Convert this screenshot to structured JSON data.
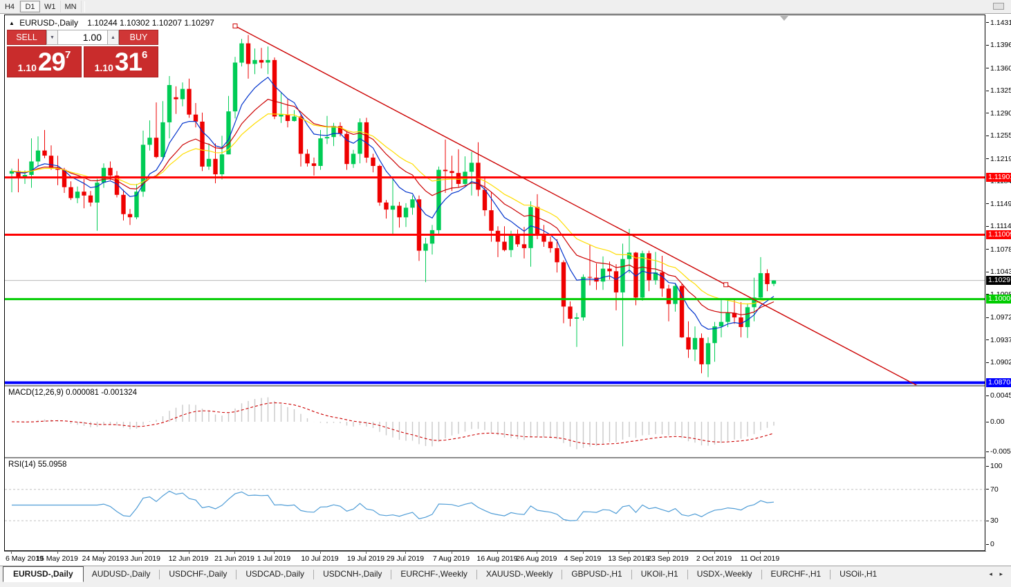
{
  "toolbar": {
    "timeframes": [
      {
        "label": "H4",
        "active": false
      },
      {
        "label": "D1",
        "active": true
      },
      {
        "label": "W1",
        "active": false
      },
      {
        "label": "MN",
        "active": false
      }
    ]
  },
  "icons": {
    "collapse": "▲",
    "spin_down": "▼",
    "spin_up": "▲",
    "tab_prev": "◂",
    "tab_next": "▸"
  },
  "chart": {
    "symbol_label": "EURUSD-,Daily",
    "ohlc_string": "1.10244 1.10302 1.10207 1.10297",
    "trade_panel": {
      "sell_label": "SELL",
      "buy_label": "BUY",
      "volume": "1.00",
      "sell_price": {
        "prefix": "1.10",
        "big": "29",
        "sup": "7"
      },
      "buy_price": {
        "prefix": "1.10",
        "big": "31",
        "sup": "6"
      }
    }
  },
  "indicators": {
    "macd_label": "MACD(12,26,9) 0.000081 -0.001324",
    "rsi_label": "RSI(14) 55.0958"
  },
  "tabs": {
    "items": [
      {
        "label": "EURUSD-,Daily",
        "active": true
      },
      {
        "label": "AUDUSD-,Daily",
        "active": false
      },
      {
        "label": "USDCHF-,Daily",
        "active": false
      },
      {
        "label": "USDCAD-,Daily",
        "active": false
      },
      {
        "label": "USDCNH-,Daily",
        "active": false
      },
      {
        "label": "EURCHF-,Weekly",
        "active": false
      },
      {
        "label": "XAUUSD-,Weekly",
        "active": false
      },
      {
        "label": "GBPUSD-,H1",
        "active": false
      },
      {
        "label": "UKOil-,H1",
        "active": false
      },
      {
        "label": "USDX-,Weekly",
        "active": false
      },
      {
        "label": "EURCHF-,H1",
        "active": false
      },
      {
        "label": "USOil-,H1",
        "active": false
      }
    ]
  },
  "chart_data": {
    "type": "candlestick",
    "symbol": "EURUSD",
    "timeframe": "Daily",
    "last_ohlc": {
      "open": 1.10244,
      "high": 1.10302,
      "low": 1.10207,
      "close": 1.10297
    },
    "current_price": 1.10297,
    "price_axis": {
      "max": 1.14428,
      "min": 1.08666,
      "ticks": [
        "1.14310",
        "1.13960",
        "1.13600",
        "1.13250",
        "1.12900",
        "1.12550",
        "1.12190",
        "1.11840",
        "1.11490",
        "1.11140",
        "1.10780",
        "1.10430",
        "1.10080",
        "1.09720",
        "1.09370",
        "1.09020"
      ]
    },
    "price_labels": [
      {
        "text": "1.11901",
        "price": 1.11901,
        "bg": "#FF0000"
      },
      {
        "text": "1.11009",
        "price": 1.11009,
        "bg": "#FF0000"
      },
      {
        "text": "1.10297",
        "price": 1.10297,
        "bg": "#000000"
      },
      {
        "text": "1.10006",
        "price": 1.10006,
        "bg": "#00CC00"
      },
      {
        "text": "1.08704",
        "price": 1.08704,
        "bg": "#0000FF"
      }
    ],
    "hlines": [
      {
        "price": 1.11901,
        "color": "#FF0000",
        "width": 3
      },
      {
        "price": 1.11009,
        "color": "#FF0000",
        "width": 3
      },
      {
        "price": 1.10006,
        "color": "#00CC00",
        "width": 3
      },
      {
        "price": 1.08704,
        "color": "#0000FF",
        "width": 4
      }
    ],
    "trendline": {
      "i1": 34,
      "p1": 1.1426,
      "i2": 108.7,
      "p2": 1.1023,
      "color": "#CC0000"
    },
    "colors": {
      "bull": "#00CC55",
      "bear": "#EE0000",
      "ma_fast": "#0033CC",
      "ma_mid": "#CC0000",
      "ma_slow": "#FFDD00",
      "macd_bar": "#C9C9C9",
      "macd_signal": "#CC0000",
      "rsi_line": "#4E9CD6",
      "price_line": "#B8B8B8",
      "level_line": "#C0C0C0"
    },
    "ma_periods": [
      8,
      16,
      24
    ],
    "macd": {
      "params": "12,26,9",
      "value": 8.1e-05,
      "signal": -0.001324,
      "axis": [
        {
          "text": "0.004536",
          "v": 0.004536
        },
        {
          "text": "0.00",
          "v": 0
        },
        {
          "text": "-0.005205",
          "v": -0.005205
        }
      ]
    },
    "rsi": {
      "period": 14,
      "value": 55.0958,
      "levels": [
        70,
        30
      ],
      "axis": [
        {
          "text": "100",
          "v": 100
        },
        {
          "text": "70",
          "v": 70
        },
        {
          "text": "30",
          "v": 30
        },
        {
          "text": "0",
          "v": 0
        }
      ]
    },
    "x_labels": [
      [
        0,
        "6 May 2019"
      ],
      [
        7,
        "15 May 2019"
      ],
      [
        14,
        "24 May 2019"
      ],
      [
        20,
        "3 Jun 2019"
      ],
      [
        27,
        "12 Jun 2019"
      ],
      [
        34,
        "21 Jun 2019"
      ],
      [
        40,
        "1 Jul 2019"
      ],
      [
        47,
        "10 Jul 2019"
      ],
      [
        54,
        "19 Jul 2019"
      ],
      [
        60,
        "29 Jul 2019"
      ],
      [
        67,
        "7 Aug 2019"
      ],
      [
        74,
        "16 Aug 2019"
      ],
      [
        80,
        "26 Aug 2019"
      ],
      [
        87,
        "4 Sep 2019"
      ],
      [
        94,
        "13 Sep 2019"
      ],
      [
        100,
        "23 Sep 2019"
      ],
      [
        107,
        "2 Oct 2019"
      ],
      [
        114,
        "11 Oct 2019"
      ]
    ],
    "candles": [
      [
        1.1196,
        1.1204,
        1.1167,
        1.12
      ],
      [
        1.12,
        1.1219,
        1.1167,
        1.1189
      ],
      [
        1.1189,
        1.1201,
        1.118,
        1.1194
      ],
      [
        1.1194,
        1.1251,
        1.1174,
        1.1215
      ],
      [
        1.1215,
        1.1254,
        1.1207,
        1.1232
      ],
      [
        1.1232,
        1.1264,
        1.122,
        1.1224
      ],
      [
        1.1224,
        1.124,
        1.1202,
        1.1205
      ],
      [
        1.1205,
        1.1224,
        1.1178,
        1.1202
      ],
      [
        1.1202,
        1.1205,
        1.1166,
        1.1175
      ],
      [
        1.1175,
        1.1184,
        1.1155,
        1.1158
      ],
      [
        1.1158,
        1.1176,
        1.115,
        1.1168
      ],
      [
        1.1168,
        1.1188,
        1.1142,
        1.1162
      ],
      [
        1.1162,
        1.1169,
        1.1145,
        1.1151
      ],
      [
        1.1151,
        1.1188,
        1.1107,
        1.1182
      ],
      [
        1.1182,
        1.1212,
        1.1174,
        1.1205
      ],
      [
        1.1205,
        1.1215,
        1.1186,
        1.1193
      ],
      [
        1.1193,
        1.12,
        1.1159,
        1.1163
      ],
      [
        1.1163,
        1.1171,
        1.1123,
        1.1133
      ],
      [
        1.1133,
        1.1141,
        1.1116,
        1.1128
      ],
      [
        1.1128,
        1.118,
        1.1125,
        1.1168
      ],
      [
        1.1168,
        1.1263,
        1.116,
        1.1241
      ],
      [
        1.1241,
        1.1279,
        1.1232,
        1.1252
      ],
      [
        1.1252,
        1.1307,
        1.122,
        1.1222
      ],
      [
        1.1222,
        1.1309,
        1.1219,
        1.1276
      ],
      [
        1.1276,
        1.1348,
        1.1251,
        1.1334
      ],
      [
        1.1315,
        1.1332,
        1.1289,
        1.1312
      ],
      [
        1.1312,
        1.1338,
        1.1301,
        1.1328
      ],
      [
        1.1328,
        1.1344,
        1.1283,
        1.1288
      ],
      [
        1.1288,
        1.1306,
        1.1268,
        1.1277
      ],
      [
        1.1277,
        1.1291,
        1.12,
        1.1207
      ],
      [
        1.1207,
        1.1243,
        1.1202,
        1.1219
      ],
      [
        1.1219,
        1.1243,
        1.1181,
        1.1195
      ],
      [
        1.1195,
        1.1255,
        1.1187,
        1.1226
      ],
      [
        1.1226,
        1.1317,
        1.1226,
        1.1293
      ],
      [
        1.1293,
        1.1378,
        1.1282,
        1.1369
      ],
      [
        1.1369,
        1.1406,
        1.1363,
        1.1399
      ],
      [
        1.1399,
        1.1412,
        1.1344,
        1.1367
      ],
      [
        1.1367,
        1.1391,
        1.1351,
        1.1373
      ],
      [
        1.1373,
        1.1392,
        1.136,
        1.1369
      ],
      [
        1.1369,
        1.1394,
        1.1351,
        1.1373
      ],
      [
        1.1373,
        1.1377,
        1.1281,
        1.1285
      ],
      [
        1.1285,
        1.1322,
        1.1275,
        1.1288
      ],
      [
        1.1288,
        1.1312,
        1.1268,
        1.1278
      ],
      [
        1.1278,
        1.1295,
        1.1277,
        1.1285
      ],
      [
        1.1285,
        1.1289,
        1.1207,
        1.1227
      ],
      [
        1.1227,
        1.1234,
        1.1207,
        1.1212
      ],
      [
        1.1212,
        1.1221,
        1.1193,
        1.1208
      ],
      [
        1.1208,
        1.1264,
        1.1202,
        1.1251
      ],
      [
        1.1251,
        1.1286,
        1.1242,
        1.1253
      ],
      [
        1.1253,
        1.1275,
        1.1239,
        1.127
      ],
      [
        1.127,
        1.1276,
        1.1254,
        1.1258
      ],
      [
        1.1258,
        1.1262,
        1.1202,
        1.1211
      ],
      [
        1.1211,
        1.1233,
        1.1205,
        1.1227
      ],
      [
        1.1227,
        1.1282,
        1.1212,
        1.1276
      ],
      [
        1.1276,
        1.1283,
        1.1213,
        1.1221
      ],
      [
        1.1221,
        1.1227,
        1.1198,
        1.1208
      ],
      [
        1.1208,
        1.121,
        1.1146,
        1.1151
      ],
      [
        1.1151,
        1.1155,
        1.1126,
        1.114
      ],
      [
        1.114,
        1.1187,
        1.1101,
        1.1146
      ],
      [
        1.1146,
        1.1152,
        1.1112,
        1.1128
      ],
      [
        1.1128,
        1.115,
        1.1113,
        1.1143
      ],
      [
        1.1143,
        1.1162,
        1.1132,
        1.1156
      ],
      [
        1.1156,
        1.1162,
        1.106,
        1.1076
      ],
      [
        1.1076,
        1.1096,
        1.1027,
        1.1087
      ],
      [
        1.1087,
        1.1116,
        1.107,
        1.1108
      ],
      [
        1.1108,
        1.1207,
        1.1101,
        1.1202
      ],
      [
        1.1202,
        1.1249,
        1.1166,
        1.12
      ],
      [
        1.12,
        1.1224,
        1.1169,
        1.1197
      ],
      [
        1.1197,
        1.1234,
        1.1175,
        1.118
      ],
      [
        1.118,
        1.1223,
        1.1178,
        1.1199
      ],
      [
        1.1199,
        1.123,
        1.1162,
        1.1213
      ],
      [
        1.1213,
        1.1245,
        1.1161,
        1.1171
      ],
      [
        1.1171,
        1.1192,
        1.113,
        1.1139
      ],
      [
        1.1139,
        1.1168,
        1.109,
        1.1107
      ],
      [
        1.1107,
        1.1114,
        1.1066,
        1.109
      ],
      [
        1.109,
        1.1114,
        1.1075,
        1.1077
      ],
      [
        1.1077,
        1.1107,
        1.1066,
        1.11
      ],
      [
        1.11,
        1.1109,
        1.1082,
        1.1086
      ],
      [
        1.1086,
        1.1113,
        1.1064,
        1.108
      ],
      [
        1.108,
        1.1153,
        1.1051,
        1.1144
      ],
      [
        1.1144,
        1.1164,
        1.1094,
        1.1101
      ],
      [
        1.1101,
        1.1116,
        1.1082,
        1.109
      ],
      [
        1.109,
        1.1098,
        1.1073,
        1.108
      ],
      [
        1.108,
        1.1094,
        1.1042,
        1.1058
      ],
      [
        1.1058,
        1.1061,
        1.0963,
        1.0989
      ],
      [
        1.0989,
        1.0997,
        1.0958,
        1.097
      ],
      [
        1.097,
        1.0979,
        1.0926,
        1.0972
      ],
      [
        1.0972,
        1.1039,
        1.0967,
        1.1035
      ],
      [
        1.1035,
        1.1085,
        1.1022,
        1.1034
      ],
      [
        1.1034,
        1.1056,
        1.1015,
        1.1028
      ],
      [
        1.1028,
        1.1067,
        1.1015,
        1.1048
      ],
      [
        1.1048,
        1.1059,
        1.1031,
        1.1044
      ],
      [
        1.1044,
        1.1055,
        1.0983,
        1.1011
      ],
      [
        1.1011,
        1.1087,
        1.0927,
        1.1063
      ],
      [
        1.1063,
        1.111,
        1.1041,
        1.1073
      ],
      [
        1.1073,
        1.1074,
        1.0991,
        1.1003
      ],
      [
        1.1003,
        1.1076,
        1.0998,
        1.1072
      ],
      [
        1.1072,
        1.1076,
        1.1013,
        1.103
      ],
      [
        1.103,
        1.1074,
        1.1023,
        1.1042
      ],
      [
        1.1042,
        1.1068,
        1.1004,
        1.1017
      ],
      [
        1.1017,
        1.1023,
        1.0966,
        1.0993
      ],
      [
        1.0993,
        1.1024,
        1.0981,
        1.1021
      ],
      [
        1.1021,
        1.1024,
        1.094,
        1.0941
      ],
      [
        1.0941,
        1.0966,
        1.0909,
        1.0922
      ],
      [
        1.0922,
        1.0958,
        1.0904,
        1.094
      ],
      [
        1.094,
        1.0947,
        1.0885,
        1.0899
      ],
      [
        1.0899,
        1.0941,
        1.0879,
        1.0932
      ],
      [
        1.0932,
        1.0965,
        1.0903,
        1.0958
      ],
      [
        1.0958,
        1.0999,
        1.0941,
        1.0965
      ],
      [
        1.0965,
        1.0999,
        1.0957,
        1.0979
      ],
      [
        1.0979,
        1.1,
        1.0962,
        1.0972
      ],
      [
        1.0972,
        1.0996,
        1.0941,
        1.0957
      ],
      [
        1.0957,
        1.0994,
        1.094,
        1.0988
      ],
      [
        1.0988,
        1.1034,
        1.0966,
        1.1003
      ],
      [
        1.1003,
        1.1066,
        1.1,
        1.1041
      ],
      [
        1.1041,
        1.1047,
        1.1013,
        1.1024
      ],
      [
        1.10244,
        1.10302,
        1.10207,
        1.10297
      ]
    ]
  }
}
